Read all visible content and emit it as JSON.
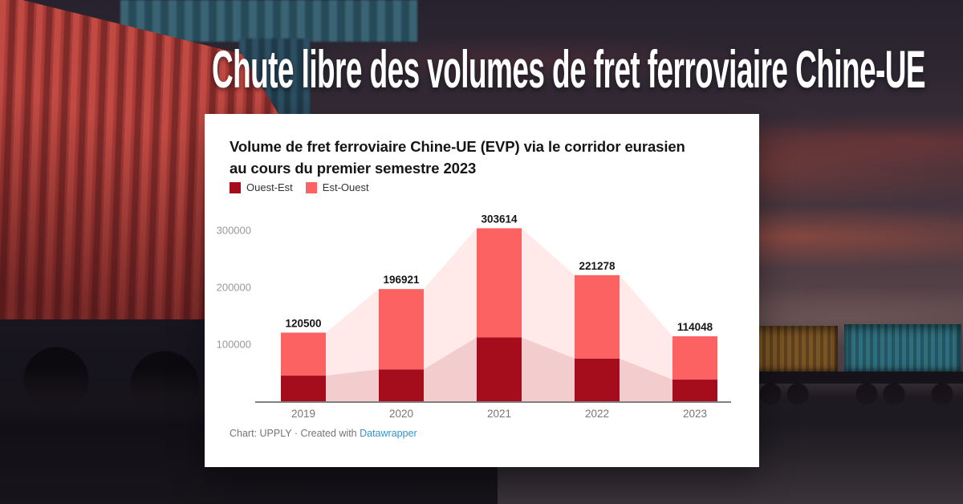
{
  "headline": "Chute libre des volumes de fret ferroviaire Chine-UE",
  "card": {
    "title_lines": [
      "Volume de fret ferroviaire Chine-UE (EVP) via le corridor eurasien",
      "au cours du premier semestre 2023"
    ],
    "footer": {
      "prefix": "Chart: UPPLY · Created with ",
      "link_text": "Datawrapper"
    }
  },
  "chart_data": {
    "type": "bar",
    "stacked": true,
    "title": "Volume de fret ferroviaire Chine-UE (EVP) via le corridor eurasien au cours du premier semestre 2023",
    "categories": [
      "2019",
      "2020",
      "2021",
      "2022",
      "2023"
    ],
    "series": [
      {
        "name": "Ouest-Est",
        "color": "#a50d1d",
        "values": [
          45000,
          56000,
          112000,
          75000,
          38000
        ]
      },
      {
        "name": "Est-Ouest",
        "color": "#fc6262",
        "values": [
          75500,
          140921,
          191614,
          146278,
          76048
        ]
      }
    ],
    "totals": [
      120500,
      196921,
      303614,
      221278,
      114048
    ],
    "yticks": [
      100000,
      200000,
      300000
    ],
    "ylim": [
      0,
      330000
    ],
    "grid": false,
    "legend_position": "top-left",
    "bg_area_opacity": {
      "total": 0.14,
      "ouest": 0.13
    },
    "axis_color": "#808080",
    "tick_label_color": "#999999",
    "category_label_color": "#757575",
    "value_label_color": "#161616"
  },
  "colors": {
    "link": "#3095d2",
    "card_bg": "#ffffff",
    "headline": "#ffffff"
  }
}
